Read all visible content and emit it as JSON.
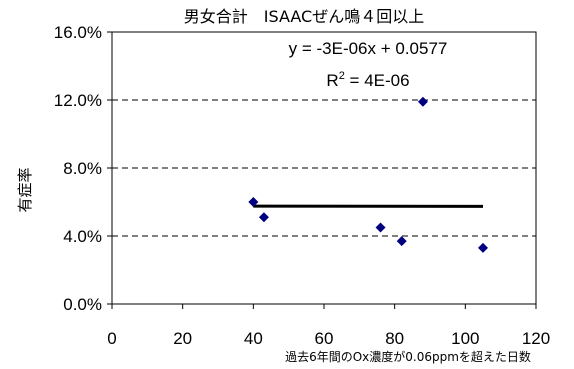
{
  "chart_data": {
    "type": "scatter",
    "title": "男女合計　ISAACぜん鳴４回以上",
    "xlabel": "過去6年間のOx濃度が0.06ppmを超えた日数",
    "ylabel": "有症率",
    "xlim": [
      0,
      120
    ],
    "ylim": [
      0,
      0.16
    ],
    "x_ticks": [
      "0",
      "20",
      "40",
      "60",
      "80",
      "100",
      "120"
    ],
    "y_ticks": [
      "0.0%",
      "4.0%",
      "8.0%",
      "12.0%",
      "16.0%"
    ],
    "y_tick_values": [
      0,
      0.04,
      0.08,
      0.12,
      0.16
    ],
    "x_tick_values": [
      0,
      20,
      40,
      60,
      80,
      100,
      120
    ],
    "gridlines": "horizontal dashed",
    "points": [
      {
        "x": 40,
        "y": 0.06
      },
      {
        "x": 43,
        "y": 0.051
      },
      {
        "x": 76,
        "y": 0.045
      },
      {
        "x": 82,
        "y": 0.037
      },
      {
        "x": 88,
        "y": 0.119
      },
      {
        "x": 105,
        "y": 0.033
      }
    ],
    "trendline": {
      "x": [
        40,
        105
      ],
      "y": [
        0.0576,
        0.0574
      ]
    },
    "equation": "y = -3E-06x + 0.0577",
    "r2_prefix": "R",
    "r2_sup": "2",
    "r2_value": " = 4E-06",
    "marker_color": "#000080",
    "line_color": "#000000"
  }
}
